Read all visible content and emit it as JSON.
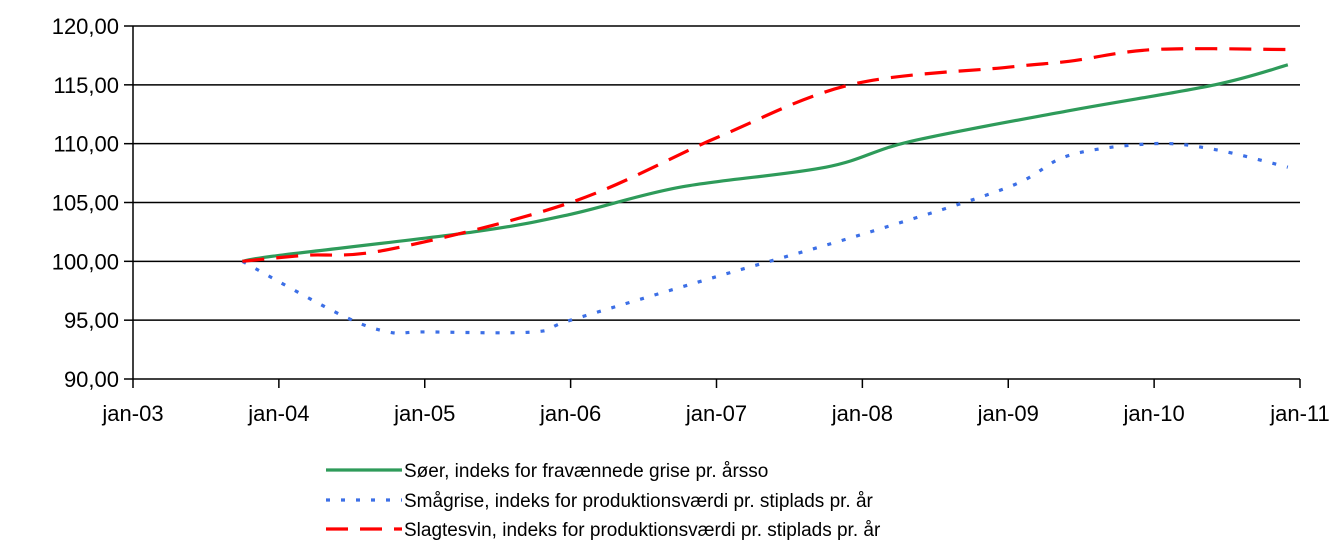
{
  "chart_data": {
    "type": "line",
    "x_ticks": [
      "jan-03",
      "jan-04",
      "jan-05",
      "jan-06",
      "jan-07",
      "jan-08",
      "jan-09",
      "jan-10",
      "jan-11"
    ],
    "y_ticks": [
      "90,00",
      "95,00",
      "100,00",
      "105,00",
      "110,00",
      "115,00",
      "120,00"
    ],
    "ylim": [
      90,
      120
    ],
    "xlim": [
      "jan-03",
      "jan-11"
    ],
    "grid": "horizontal",
    "legend_position": "bottom",
    "series": [
      {
        "name": "Søer, indeks for fravænnede grise pr. årsso",
        "color": "#2e9b5a",
        "dash": "solid",
        "points": [
          [
            "okt-03",
            100.0
          ],
          [
            "jan-04",
            100.5
          ],
          [
            "maj-05",
            102.5
          ],
          [
            "jan-06",
            104.0
          ],
          [
            "okt-06",
            106.3
          ],
          [
            "okt-07",
            108.0
          ],
          [
            "maj-08",
            110.2
          ],
          [
            "jun-09",
            112.8
          ],
          [
            "jun-10",
            115.0
          ],
          [
            "dec-10",
            116.7
          ]
        ]
      },
      {
        "name": "Smågrise, indeks for produktionsværdi pr. stiplads pr. år",
        "color": "#3c6fe6",
        "dash": "dotted",
        "points": [
          [
            "okt-03",
            100.0
          ],
          [
            "jun-04",
            95.5
          ],
          [
            "okt-04",
            94.0
          ],
          [
            "jan-05",
            94.0
          ],
          [
            "okt-05",
            94.0
          ],
          [
            "jan-06",
            95.0
          ],
          [
            "jan-07",
            98.7
          ],
          [
            "jan-08",
            102.3
          ],
          [
            "jan-09",
            106.3
          ],
          [
            "jun-09",
            109.0
          ],
          [
            "jan-10",
            110.0
          ],
          [
            "jun-10",
            109.5
          ],
          [
            "dec-10",
            108.0
          ]
        ]
      },
      {
        "name": "Slagtesvin, indeks for produktionsværdi pr. stiplads pr. år",
        "color": "#ff0000",
        "dash": "dashed",
        "points": [
          [
            "okt-03",
            100.0
          ],
          [
            "mar-04",
            100.5
          ],
          [
            "okt-04",
            101.0
          ],
          [
            "jan-06",
            105.0
          ],
          [
            "jan-07",
            110.5
          ],
          [
            "dec-07",
            115.0
          ],
          [
            "jan-09",
            116.5
          ],
          [
            "jun-09",
            117.0
          ],
          [
            "jan-10",
            118.0
          ],
          [
            "dec-10",
            118.0
          ]
        ]
      }
    ]
  }
}
